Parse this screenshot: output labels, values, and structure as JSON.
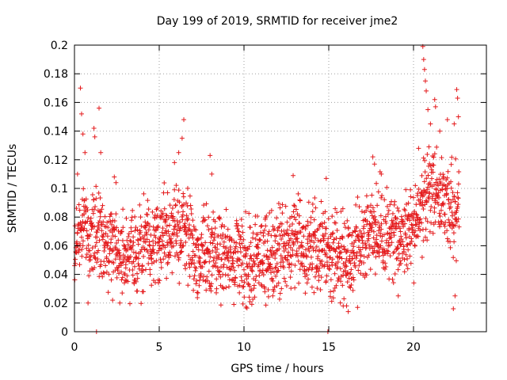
{
  "chart_data": {
    "type": "scatter",
    "title": "Day 199 of 2019, SRMTID for receiver jme2",
    "xlabel": "GPS time / hours",
    "ylabel": "SRMTID / TECUs",
    "xlim": [
      0,
      24.3
    ],
    "ylim": [
      0,
      0.2
    ],
    "xticks": [
      "0",
      "5",
      "10",
      "15",
      "20"
    ],
    "yticks": [
      "0",
      "0.02",
      "0.04",
      "0.06",
      "0.08",
      "0.1",
      "0.12",
      "0.14",
      "0.16",
      "0.18",
      "0.2"
    ],
    "grid": true,
    "marker": "+",
    "color": "#e41a1c",
    "series": [
      {
        "name": "SRMTID",
        "trend": [
          {
            "x": 0.0,
            "y": 0.06
          },
          {
            "x": 0.5,
            "y": 0.075
          },
          {
            "x": 1.0,
            "y": 0.066
          },
          {
            "x": 1.5,
            "y": 0.064
          },
          {
            "x": 2.0,
            "y": 0.06
          },
          {
            "x": 2.5,
            "y": 0.057
          },
          {
            "x": 3.0,
            "y": 0.056
          },
          {
            "x": 3.5,
            "y": 0.057
          },
          {
            "x": 4.0,
            "y": 0.058
          },
          {
            "x": 4.5,
            "y": 0.06
          },
          {
            "x": 5.0,
            "y": 0.062
          },
          {
            "x": 5.5,
            "y": 0.066
          },
          {
            "x": 6.0,
            "y": 0.07
          },
          {
            "x": 6.5,
            "y": 0.072
          },
          {
            "x": 7.0,
            "y": 0.054
          },
          {
            "x": 7.5,
            "y": 0.052
          },
          {
            "x": 8.0,
            "y": 0.058
          },
          {
            "x": 8.5,
            "y": 0.053
          },
          {
            "x": 9.0,
            "y": 0.052
          },
          {
            "x": 9.5,
            "y": 0.052
          },
          {
            "x": 10.0,
            "y": 0.05
          },
          {
            "x": 10.5,
            "y": 0.047
          },
          {
            "x": 11.0,
            "y": 0.05
          },
          {
            "x": 11.5,
            "y": 0.054
          },
          {
            "x": 12.0,
            "y": 0.056
          },
          {
            "x": 12.5,
            "y": 0.06
          },
          {
            "x": 13.0,
            "y": 0.062
          },
          {
            "x": 13.5,
            "y": 0.058
          },
          {
            "x": 14.0,
            "y": 0.055
          },
          {
            "x": 14.5,
            "y": 0.06
          },
          {
            "x": 15.0,
            "y": 0.055
          },
          {
            "x": 15.5,
            "y": 0.053
          },
          {
            "x": 16.0,
            "y": 0.052
          },
          {
            "x": 16.5,
            "y": 0.055
          },
          {
            "x": 17.0,
            "y": 0.06
          },
          {
            "x": 17.5,
            "y": 0.07
          },
          {
            "x": 18.0,
            "y": 0.072
          },
          {
            "x": 18.5,
            "y": 0.068
          },
          {
            "x": 19.0,
            "y": 0.066
          },
          {
            "x": 19.5,
            "y": 0.068
          },
          {
            "x": 20.0,
            "y": 0.075
          },
          {
            "x": 20.5,
            "y": 0.09
          },
          {
            "x": 21.0,
            "y": 0.1
          },
          {
            "x": 21.5,
            "y": 0.095
          },
          {
            "x": 22.0,
            "y": 0.092
          },
          {
            "x": 22.5,
            "y": 0.08
          }
        ],
        "peaks": [
          {
            "x": 0.18,
            "y": 0.11
          },
          {
            "x": 0.35,
            "y": 0.17
          },
          {
            "x": 0.42,
            "y": 0.152
          },
          {
            "x": 0.5,
            "y": 0.138
          },
          {
            "x": 0.62,
            "y": 0.125
          },
          {
            "x": 1.15,
            "y": 0.142
          },
          {
            "x": 1.2,
            "y": 0.136
          },
          {
            "x": 1.45,
            "y": 0.156
          },
          {
            "x": 1.55,
            "y": 0.125
          },
          {
            "x": 2.35,
            "y": 0.108
          },
          {
            "x": 2.45,
            "y": 0.104
          },
          {
            "x": 5.9,
            "y": 0.118
          },
          {
            "x": 6.15,
            "y": 0.125
          },
          {
            "x": 6.35,
            "y": 0.135
          },
          {
            "x": 6.45,
            "y": 0.148
          },
          {
            "x": 8.0,
            "y": 0.123
          },
          {
            "x": 8.1,
            "y": 0.11
          },
          {
            "x": 12.9,
            "y": 0.109
          },
          {
            "x": 14.85,
            "y": 0.107
          },
          {
            "x": 17.6,
            "y": 0.122
          },
          {
            "x": 17.7,
            "y": 0.117
          },
          {
            "x": 18.1,
            "y": 0.11
          },
          {
            "x": 20.3,
            "y": 0.128
          },
          {
            "x": 20.55,
            "y": 0.199
          },
          {
            "x": 20.6,
            "y": 0.19
          },
          {
            "x": 20.65,
            "y": 0.183
          },
          {
            "x": 20.7,
            "y": 0.175
          },
          {
            "x": 20.75,
            "y": 0.168
          },
          {
            "x": 20.85,
            "y": 0.155
          },
          {
            "x": 21.0,
            "y": 0.145
          },
          {
            "x": 21.25,
            "y": 0.162
          },
          {
            "x": 21.3,
            "y": 0.157
          },
          {
            "x": 21.55,
            "y": 0.14
          },
          {
            "x": 22.0,
            "y": 0.148
          },
          {
            "x": 22.4,
            "y": 0.145
          },
          {
            "x": 22.55,
            "y": 0.169
          },
          {
            "x": 22.6,
            "y": 0.163
          },
          {
            "x": 22.65,
            "y": 0.15
          }
        ],
        "lows": [
          {
            "x": 1.3,
            "y": 0.0
          },
          {
            "x": 14.95,
            "y": 0.0
          },
          {
            "x": 0.8,
            "y": 0.02
          },
          {
            "x": 2.25,
            "y": 0.022
          },
          {
            "x": 10.35,
            "y": 0.021
          },
          {
            "x": 11.7,
            "y": 0.025
          },
          {
            "x": 15.1,
            "y": 0.028
          },
          {
            "x": 16.05,
            "y": 0.018
          },
          {
            "x": 16.15,
            "y": 0.014
          },
          {
            "x": 16.7,
            "y": 0.017
          },
          {
            "x": 19.1,
            "y": 0.025
          },
          {
            "x": 22.35,
            "y": 0.016
          },
          {
            "x": 22.45,
            "y": 0.025
          }
        ]
      }
    ]
  }
}
